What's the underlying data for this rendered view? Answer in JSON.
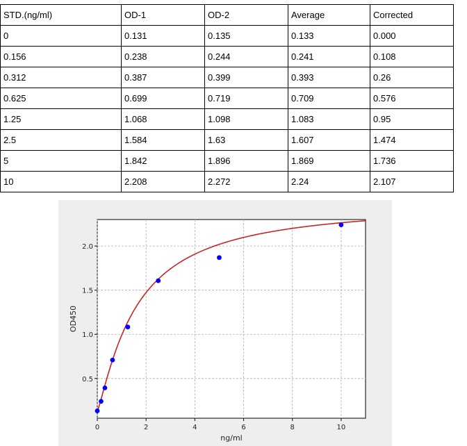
{
  "table": {
    "headers": [
      "STD.(ng/ml)",
      "OD-1",
      "OD-2",
      "Average",
      "Corrected"
    ],
    "rows": [
      [
        "0",
        "0.131",
        "0.135",
        "0.133",
        "0.000"
      ],
      [
        "0.156",
        "0.238",
        "0.244",
        "0.241",
        "0.108"
      ],
      [
        "0.312",
        "0.387",
        "0.399",
        "0.393",
        "0.26"
      ],
      [
        "0.625",
        "0.699",
        "0.719",
        "0.709",
        "0.576"
      ],
      [
        "1.25",
        "1.068",
        "1.098",
        "1.083",
        "0.95"
      ],
      [
        "2.5",
        "1.584",
        "1.63",
        "1.607",
        "1.474"
      ],
      [
        "5",
        "1.842",
        "1.896",
        "1.869",
        "1.736"
      ],
      [
        "10",
        "2.208",
        "2.272",
        "2.24",
        "2.107"
      ]
    ]
  },
  "chart_data": {
    "type": "scatter",
    "xlabel": "ng/ml",
    "ylabel": "OD450",
    "xlim": [
      0,
      11
    ],
    "ylim": [
      0.05,
      2.3
    ],
    "xticks": [
      0,
      2,
      4,
      6,
      8,
      10
    ],
    "yticks": [
      0.5,
      1.0,
      1.5,
      2.0
    ],
    "grid": true,
    "series": [
      {
        "x": [
          0,
          0.156,
          0.312,
          0.625,
          1.25,
          2.5,
          5,
          10
        ],
        "y": [
          0.133,
          0.241,
          0.393,
          0.709,
          1.083,
          1.607,
          1.869,
          2.24
        ],
        "marker": "circle",
        "color": "#0000ff"
      }
    ],
    "fit_curve": {
      "model": "4PL",
      "bottom": 0.13,
      "top": 2.5,
      "ec50": 1.6,
      "hill": 1.2,
      "color": "#cc2222"
    }
  }
}
